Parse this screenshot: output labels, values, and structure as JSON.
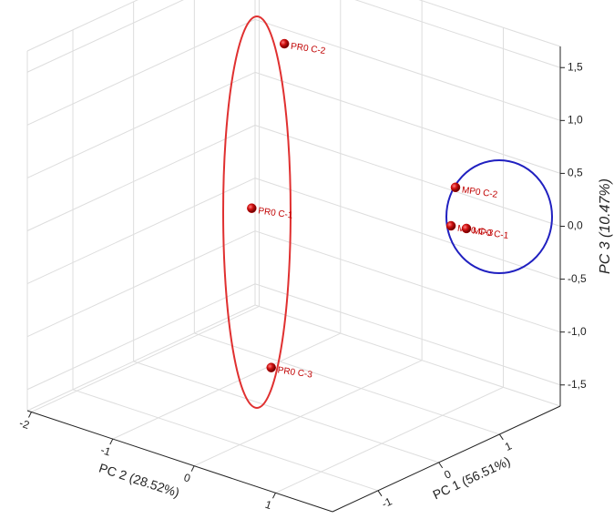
{
  "chart_data": {
    "type": "scatter3d",
    "xlabel": "PC 2 (28.52%)",
    "ylabel": "PC 1 (56.51%)",
    "zlabel": "PC 3 (10.47%)",
    "xlim": [
      -2.05,
      1.7
    ],
    "ylim": [
      -1.75,
      2.0
    ],
    "zlim": [
      -1.7,
      1.7
    ],
    "xticks": [
      -2,
      -1,
      0,
      1
    ],
    "yticks": [
      -1,
      0,
      1
    ],
    "zticks": [
      {
        "value": -1.5,
        "label": "-1,5"
      },
      {
        "value": -1.0,
        "label": "-1,0"
      },
      {
        "value": -0.5,
        "label": "-0,5"
      },
      {
        "value": 0.0,
        "label": "0,0"
      },
      {
        "value": 0.5,
        "label": "0,5"
      },
      {
        "value": 1.0,
        "label": "1,0"
      },
      {
        "value": 1.5,
        "label": "1,5"
      }
    ],
    "grid": true,
    "series": [
      {
        "color": "#c00000",
        "labels": [
          "PR0 C-2",
          "PR0 C-1",
          "PR0 C-3",
          "MP0 C-2",
          "MP0 C-3",
          "MP0 C-1"
        ],
        "x": [
          -0.63,
          -0.3,
          -0.15,
          0.92,
          0.91,
          0.98
        ],
        "y": [
          0.58,
          -0.4,
          -0.28,
          1.32,
          1.26,
          1.42
        ],
        "z": [
          1.51,
          0.3,
          -1.2,
          0.35,
          0.0,
          -0.05
        ]
      }
    ]
  }
}
